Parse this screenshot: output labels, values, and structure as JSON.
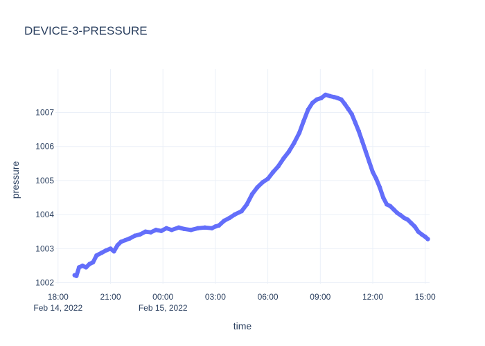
{
  "chart_data": {
    "type": "scatter",
    "title": "DEVICE-3-PRESSURE",
    "xlabel": "time",
    "ylabel": "pressure",
    "xlim_hours": [
      17.85,
      39.25
    ],
    "ylim": [
      1001.97,
      1008.27
    ],
    "x_ticks": [
      {
        "hour": 18,
        "label": "18:00",
        "sublabel": "Feb 14, 2022"
      },
      {
        "hour": 21,
        "label": "21:00",
        "sublabel": ""
      },
      {
        "hour": 24,
        "label": "00:00",
        "sublabel": "Feb 15, 2022"
      },
      {
        "hour": 27,
        "label": "03:00",
        "sublabel": ""
      },
      {
        "hour": 30,
        "label": "06:00",
        "sublabel": ""
      },
      {
        "hour": 33,
        "label": "09:00",
        "sublabel": ""
      },
      {
        "hour": 36,
        "label": "12:00",
        "sublabel": ""
      },
      {
        "hour": 39,
        "label": "15:00",
        "sublabel": ""
      }
    ],
    "y_ticks": [
      {
        "value": 1002,
        "label": "1002"
      },
      {
        "value": 1003,
        "label": "1003"
      },
      {
        "value": 1004,
        "label": "1004"
      },
      {
        "value": 1005,
        "label": "1005"
      },
      {
        "value": 1006,
        "label": "1006"
      },
      {
        "value": 1007,
        "label": "1007"
      }
    ],
    "series": [
      {
        "name": "pressure",
        "color": "#636efa",
        "x_hours": [
          18.95,
          19.05,
          19.2,
          19.4,
          19.6,
          19.8,
          20.0,
          20.2,
          20.5,
          20.75,
          21.0,
          21.2,
          21.4,
          21.6,
          21.85,
          22.1,
          22.4,
          22.7,
          23.0,
          23.3,
          23.6,
          23.9,
          24.2,
          24.5,
          24.9,
          25.2,
          25.6,
          26.0,
          26.4,
          26.8,
          27.0,
          27.2,
          27.5,
          27.8,
          28.1,
          28.5,
          28.8,
          29.1,
          29.4,
          29.7,
          30.0,
          30.3,
          30.6,
          30.9,
          31.2,
          31.5,
          31.8,
          32.05,
          32.3,
          32.55,
          32.8,
          33.05,
          33.3,
          33.55,
          33.8,
          34.0,
          34.2,
          34.4,
          34.6,
          34.8,
          35.0,
          35.2,
          35.4,
          35.6,
          35.8,
          36.0,
          36.2,
          36.4,
          36.6,
          36.8,
          37.0,
          37.2,
          37.4,
          37.6,
          37.8,
          38.0,
          38.2,
          38.4,
          38.6,
          38.8,
          39.0,
          39.15
        ],
        "values": [
          1002.22,
          1002.2,
          1002.45,
          1002.5,
          1002.45,
          1002.55,
          1002.6,
          1002.8,
          1002.88,
          1002.95,
          1003.0,
          1002.92,
          1003.1,
          1003.2,
          1003.25,
          1003.3,
          1003.38,
          1003.42,
          1003.5,
          1003.48,
          1003.55,
          1003.52,
          1003.6,
          1003.55,
          1003.62,
          1003.58,
          1003.55,
          1003.6,
          1003.62,
          1003.6,
          1003.65,
          1003.68,
          1003.82,
          1003.9,
          1004.0,
          1004.1,
          1004.3,
          1004.6,
          1004.8,
          1004.95,
          1005.05,
          1005.25,
          1005.42,
          1005.65,
          1005.85,
          1006.1,
          1006.4,
          1006.75,
          1007.08,
          1007.28,
          1007.38,
          1007.42,
          1007.52,
          1007.48,
          1007.45,
          1007.42,
          1007.38,
          1007.25,
          1007.1,
          1006.95,
          1006.7,
          1006.45,
          1006.15,
          1005.85,
          1005.55,
          1005.25,
          1005.05,
          1004.8,
          1004.5,
          1004.3,
          1004.25,
          1004.15,
          1004.05,
          1003.98,
          1003.9,
          1003.85,
          1003.75,
          1003.65,
          1003.5,
          1003.42,
          1003.35,
          1003.28
        ]
      }
    ]
  }
}
